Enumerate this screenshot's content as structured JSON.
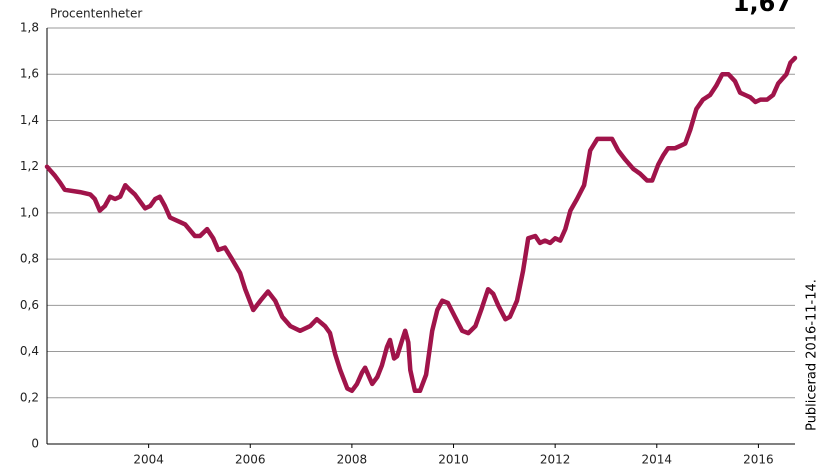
{
  "chart_data": {
    "type": "line",
    "y_label": "Procentenheter",
    "annotations": [
      "1,67",
      "Publicerad 2016-11-14."
    ],
    "color": "#a0144a",
    "x": [
      2002.0,
      2002.16,
      2002.26,
      2002.35,
      2002.65,
      2002.85,
      2002.94,
      2003.04,
      2003.14,
      2003.24,
      2003.34,
      2003.44,
      2003.54,
      2003.63,
      2003.73,
      2003.93,
      2004.03,
      2004.13,
      2004.22,
      2004.32,
      2004.42,
      2004.62,
      2004.72,
      2004.91,
      2005.01,
      2005.15,
      2005.27,
      2005.37,
      2005.5,
      2005.64,
      2005.8,
      2005.9,
      2006.06,
      2006.2,
      2006.35,
      2006.49,
      2006.63,
      2006.79,
      2006.98,
      2007.18,
      2007.31,
      2007.47,
      2007.57,
      2007.67,
      2007.77,
      2007.91,
      2008.0,
      2008.1,
      2008.2,
      2008.26,
      2008.4,
      2008.5,
      2008.59,
      2008.69,
      2008.75,
      2008.83,
      2008.89,
      2008.99,
      2009.05,
      2009.11,
      2009.15,
      2009.24,
      2009.34,
      2009.46,
      2009.58,
      2009.68,
      2009.78,
      2009.89,
      2010.03,
      2010.17,
      2010.29,
      2010.43,
      2010.56,
      2010.68,
      2010.78,
      2010.88,
      2011.02,
      2011.11,
      2011.25,
      2011.37,
      2011.47,
      2011.61,
      2011.7,
      2011.8,
      2011.9,
      2012.0,
      2012.1,
      2012.2,
      2012.3,
      2012.43,
      2012.57,
      2012.69,
      2012.83,
      2012.96,
      2013.12,
      2013.24,
      2013.38,
      2013.54,
      2013.67,
      2013.81,
      2013.91,
      2014.03,
      2014.13,
      2014.22,
      2014.36,
      2014.46,
      2014.56,
      2014.66,
      2014.78,
      2014.91,
      2015.05,
      2015.17,
      2015.29,
      2015.41,
      2015.54,
      2015.64,
      2015.74,
      2015.84,
      2015.94,
      2016.04,
      2016.17,
      2016.29,
      2016.39,
      2016.55,
      2016.63,
      2016.72
    ],
    "values": [
      1.2,
      1.16,
      1.13,
      1.1,
      1.09,
      1.08,
      1.06,
      1.01,
      1.03,
      1.07,
      1.06,
      1.07,
      1.12,
      1.1,
      1.08,
      1.02,
      1.03,
      1.06,
      1.07,
      1.03,
      0.98,
      0.96,
      0.95,
      0.9,
      0.9,
      0.93,
      0.89,
      0.84,
      0.85,
      0.8,
      0.74,
      0.67,
      0.58,
      0.62,
      0.66,
      0.62,
      0.55,
      0.51,
      0.49,
      0.51,
      0.54,
      0.51,
      0.48,
      0.39,
      0.32,
      0.24,
      0.23,
      0.26,
      0.31,
      0.33,
      0.26,
      0.29,
      0.34,
      0.42,
      0.45,
      0.37,
      0.38,
      0.45,
      0.49,
      0.44,
      0.32,
      0.23,
      0.23,
      0.3,
      0.49,
      0.58,
      0.62,
      0.61,
      0.55,
      0.49,
      0.48,
      0.51,
      0.59,
      0.67,
      0.65,
      0.6,
      0.54,
      0.55,
      0.62,
      0.75,
      0.89,
      0.9,
      0.87,
      0.88,
      0.87,
      0.89,
      0.88,
      0.93,
      1.01,
      1.06,
      1.12,
      1.27,
      1.32,
      1.32,
      1.32,
      1.27,
      1.23,
      1.19,
      1.17,
      1.14,
      1.14,
      1.21,
      1.25,
      1.28,
      1.28,
      1.29,
      1.3,
      1.36,
      1.45,
      1.49,
      1.51,
      1.55,
      1.6,
      1.6,
      1.57,
      1.52,
      1.51,
      1.5,
      1.48,
      1.49,
      1.49,
      1.51,
      1.56,
      1.6,
      1.65,
      1.67
    ],
    "xlim": [
      2002,
      2016.72
    ],
    "xticks": [
      2004,
      2006,
      2008,
      2010,
      2012,
      2014,
      2016
    ],
    "ylim": [
      0,
      1.8
    ],
    "yticks": [
      0,
      {
        "value": 0.2,
        "label": "0,2"
      },
      {
        "value": 0.4,
        "label": "0,4"
      },
      {
        "value": 0.6,
        "label": "0,6"
      },
      {
        "value": 0.8,
        "label": "0,8"
      },
      {
        "value": 1.0,
        "label": "1,0"
      },
      {
        "value": 1.2,
        "label": "1,2"
      },
      {
        "value": 1.4,
        "label": "1,4"
      },
      {
        "value": 1.6,
        "label": "1,6"
      },
      {
        "value": 1.8,
        "label": "1,8"
      }
    ],
    "grid": true
  }
}
